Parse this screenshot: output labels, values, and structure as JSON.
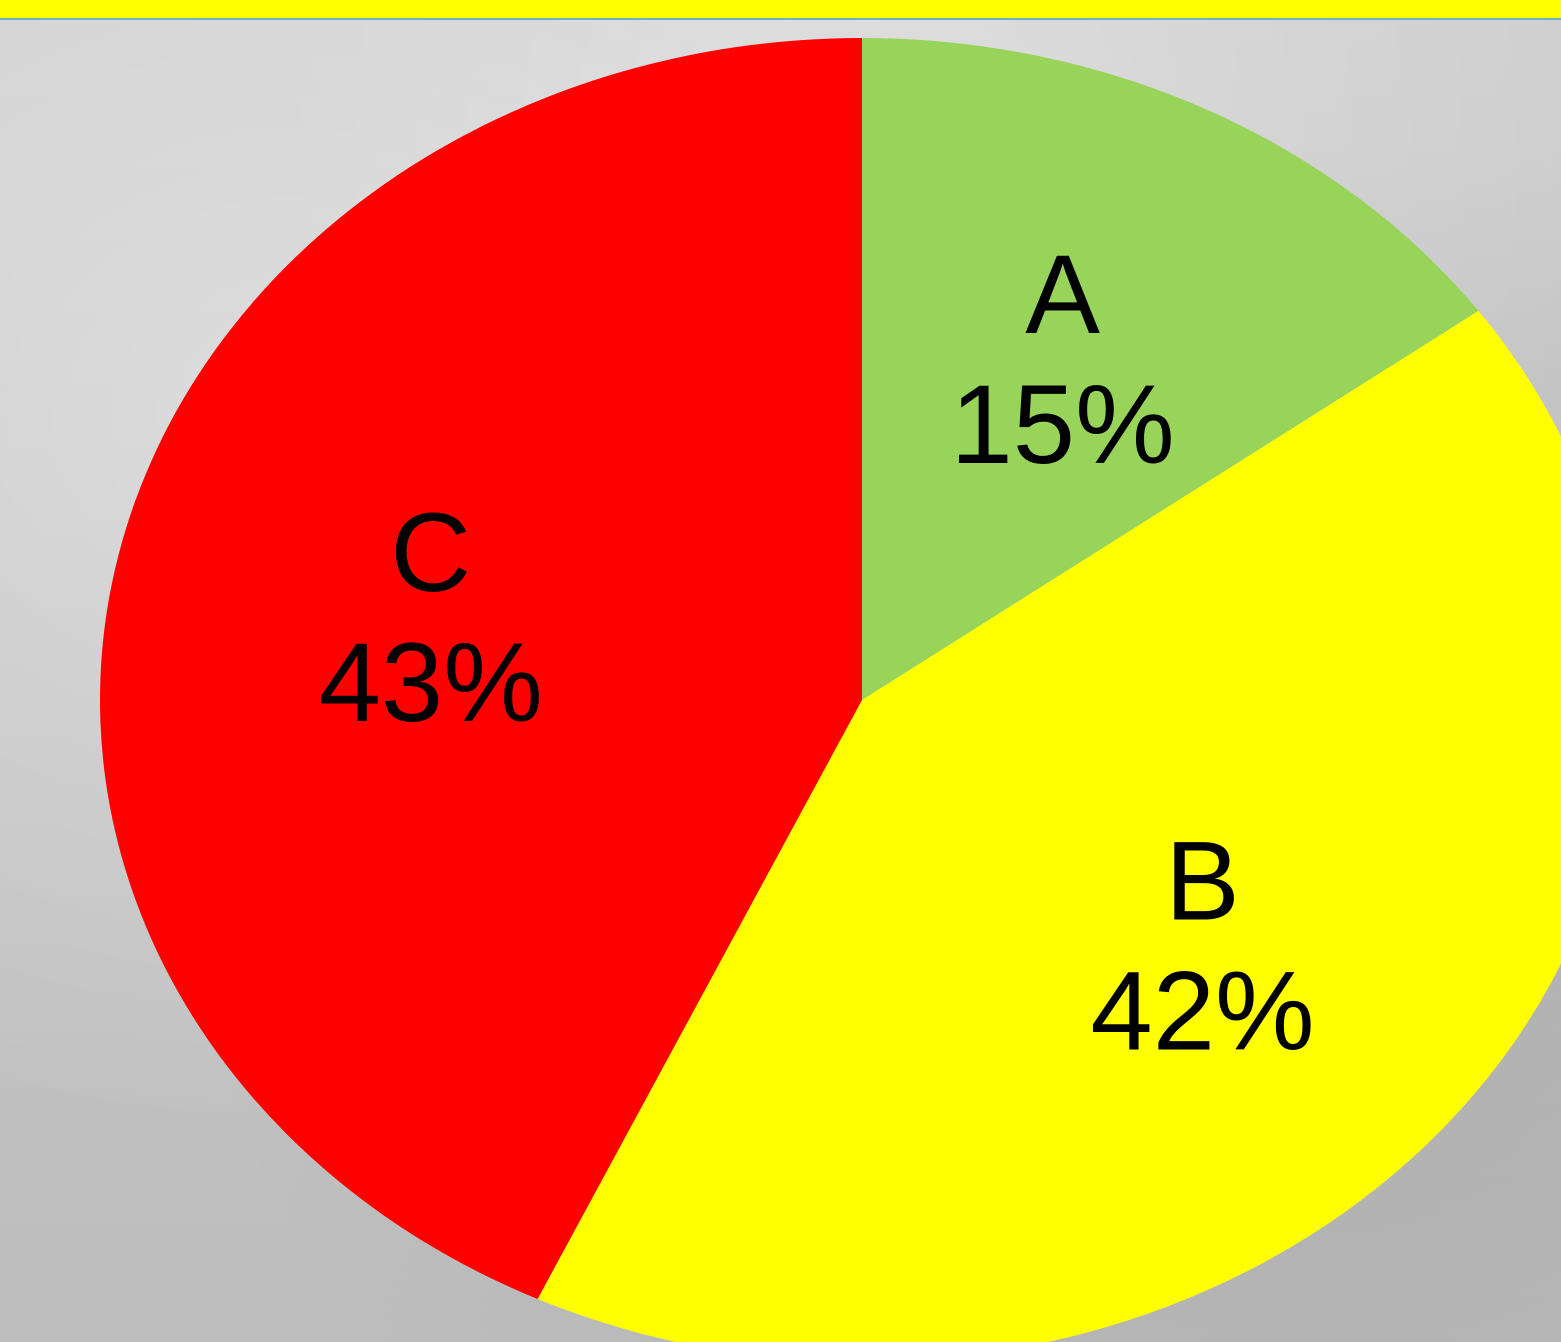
{
  "chart_data": {
    "type": "pie",
    "slices": [
      {
        "label": "A",
        "value": 15,
        "value_text": "15%",
        "color": "#99d45a"
      },
      {
        "label": "B",
        "value": 42,
        "value_text": "42%",
        "color": "#ffff00"
      },
      {
        "label": "C",
        "value": 43,
        "value_text": "43%",
        "color": "#ff0000"
      }
    ],
    "start": "12 o'clock",
    "direction": "clockwise",
    "legend": "none"
  },
  "colors": {
    "top_band": "#ffff00",
    "top_band_border": "#6fb0c8",
    "background": "#c9c9c9"
  }
}
